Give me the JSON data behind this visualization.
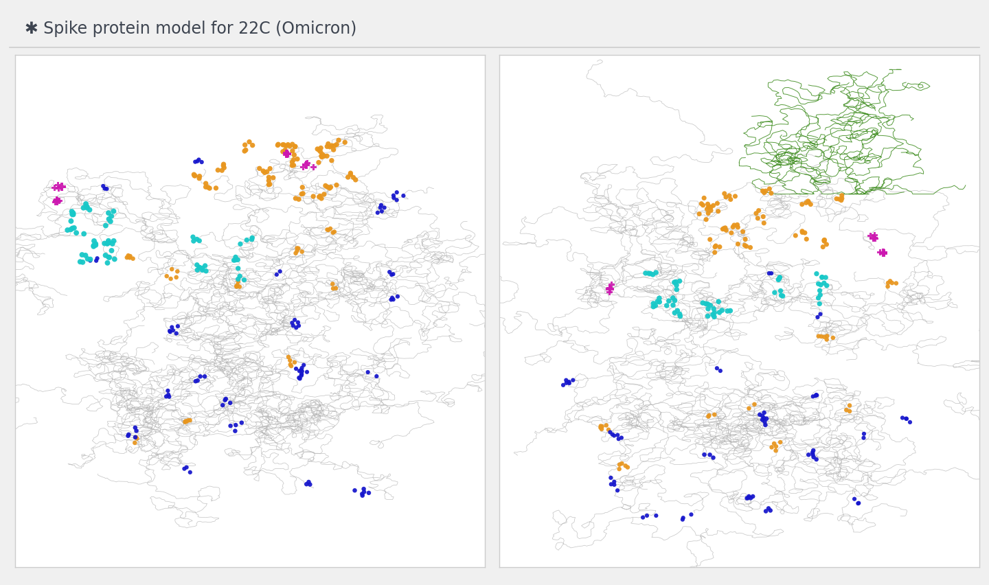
{
  "title": "Spike protein model for 22C (Omicron)",
  "bg_color": "#f0f0f0",
  "panel_bg": "#ffffff",
  "border_color": "#cccccc",
  "title_color": "#3d4450",
  "title_fontsize": 17,
  "colors": {
    "backbone": "#b0b0b0",
    "orange": "#e8961e",
    "blue": "#1515cc",
    "cyan": "#18c8c8",
    "magenta": "#cc18b0",
    "green_outline": "#3a8a1a"
  }
}
